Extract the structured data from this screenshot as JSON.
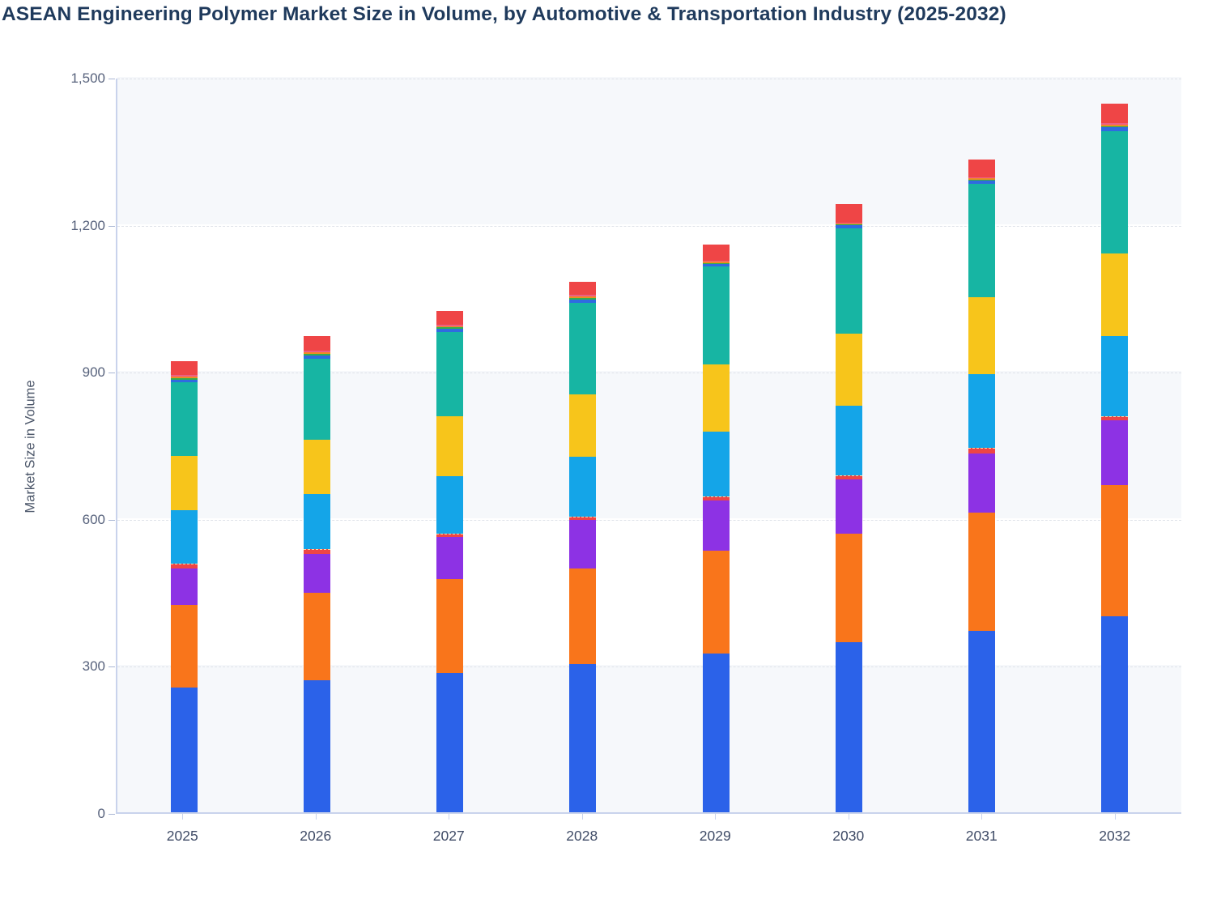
{
  "title": "ASEAN Engineering Polymer Market Size in Volume, by Automotive & Transportation Industry (2025-2032)",
  "y_axis_title": "Market Size in Volume",
  "colors": {
    "title_text": "#1f3a5c",
    "axis_line": "#c9d3ec",
    "gridline": "#dfe2e9",
    "band_fill": "#f6f8fb",
    "tick_text": "#57627c",
    "xlabel_text": "#3f4b66"
  },
  "chart_data": {
    "type": "bar",
    "stacked": true,
    "title": "ASEAN Engineering Polymer Market Size in Volume, by Automotive & Transportation Industry (2025-2032)",
    "xlabel": "",
    "ylabel": "Market Size in Volume",
    "ylim": [
      0,
      1500
    ],
    "ytick_values": [
      0,
      300,
      600,
      900,
      1200,
      1500
    ],
    "ytick_labels": [
      "0",
      "300",
      "600",
      "900",
      "1,200",
      "1,500"
    ],
    "grid": "dashed horizontal, alternating background bands",
    "legend_position": "none",
    "categories": [
      "2025",
      "2026",
      "2027",
      "2028",
      "2029",
      "2030",
      "2031",
      "2032"
    ],
    "series": [
      {
        "name": "segment-blue",
        "color": "#2b62e9",
        "values": [
          254,
          269,
          284,
          303,
          324,
          347,
          370,
          399
        ]
      },
      {
        "name": "segment-orange",
        "color": "#f9751b",
        "values": [
          169,
          178,
          191,
          195,
          209,
          221,
          242,
          269
        ]
      },
      {
        "name": "segment-purple",
        "color": "#8d32e4",
        "values": [
          75,
          80,
          86,
          98,
          103,
          111,
          120,
          132
        ]
      },
      {
        "name": "segment-rose-thin",
        "color": "#ee4545",
        "values": [
          10,
          10,
          7,
          7,
          8,
          8,
          12,
          8
        ]
      },
      {
        "name": "segment-cyan",
        "color": "#14a5e8",
        "values": [
          108,
          113,
          117,
          123,
          133,
          143,
          150,
          163
        ]
      },
      {
        "name": "segment-yellow",
        "color": "#f7c51b",
        "values": [
          111,
          110,
          123,
          127,
          136,
          147,
          156,
          169
        ]
      },
      {
        "name": "segment-teal",
        "color": "#17b5a3",
        "values": [
          150,
          166,
          172,
          187,
          200,
          214,
          232,
          249
        ]
      },
      {
        "name": "segment-thin-blue",
        "color": "#2f6be0",
        "values": [
          6,
          6,
          6,
          6,
          6,
          6,
          6,
          8
        ]
      },
      {
        "name": "segment-thin-green",
        "color": "#35ad4b",
        "values": [
          3,
          3,
          3,
          3,
          2,
          2,
          3,
          3
        ]
      },
      {
        "name": "segment-thin-amber",
        "color": "#f08a24",
        "values": [
          3,
          3,
          3,
          3,
          2,
          2,
          2,
          3
        ]
      },
      {
        "name": "segment-thin-pink",
        "color": "#ee5e85",
        "values": [
          3,
          3,
          3,
          3,
          2,
          2,
          2,
          3
        ]
      },
      {
        "name": "segment-red",
        "color": "#ef4546",
        "values": [
          28,
          30,
          27,
          28,
          33,
          38,
          37,
          40
        ]
      }
    ],
    "totals": [
      920,
      971,
      1022,
      1083,
      1158,
      1241,
      1332,
      1446
    ]
  }
}
